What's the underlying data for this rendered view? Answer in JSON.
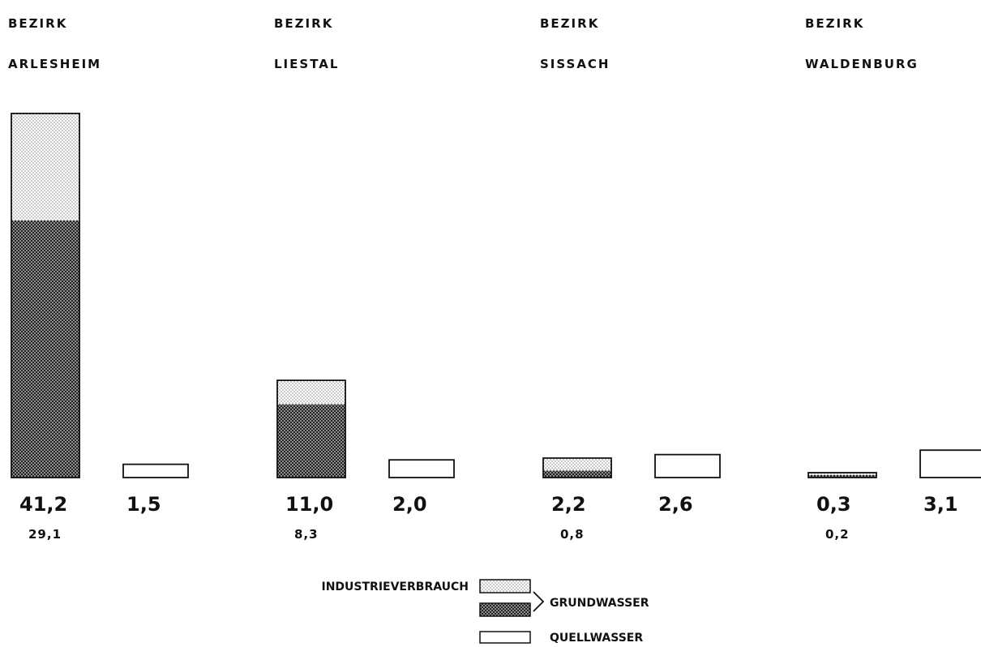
{
  "chart_data": {
    "type": "bar",
    "title": "",
    "xlabel": "",
    "ylabel": "",
    "categories": [
      {
        "line1": "BEZIRK",
        "line2": "ARLESHEIM"
      },
      {
        "line1": "BEZIRK",
        "line2": "LIESTAL"
      },
      {
        "line1": "BEZIRK",
        "line2": "SISSACH"
      },
      {
        "line1": "BEZIRK",
        "line2": "WALDENBURG"
      }
    ],
    "series": [
      {
        "name": "GRUNDWASSER",
        "stacked": true,
        "total_labels": [
          "41,2",
          "11,0",
          "2,2",
          "0,3"
        ],
        "industrie_labels": [
          "29,1",
          "8,3",
          "0,8",
          "0,2"
        ],
        "totals": [
          41.2,
          11.0,
          2.2,
          0.3
        ],
        "industrieverbrauch": [
          29.1,
          8.3,
          0.8,
          0.2
        ]
      },
      {
        "name": "QUELLWASSER",
        "labels": [
          "1,5",
          "2,0",
          "2,6",
          "3,1"
        ],
        "values": [
          1.5,
          2.0,
          2.6,
          3.1
        ]
      }
    ],
    "legend": {
      "placement": "bottom-center",
      "industrie": "INDUSTRIEVERBRAUCH",
      "grundwasser": "GRUNDWASSER",
      "quellwasser": "QUELLWASSER"
    },
    "colors": {
      "ink": "#111111",
      "paper": "#ffffff",
      "light_dot": "#9a9a9a",
      "dark_cross": "#1e1e1e"
    }
  }
}
